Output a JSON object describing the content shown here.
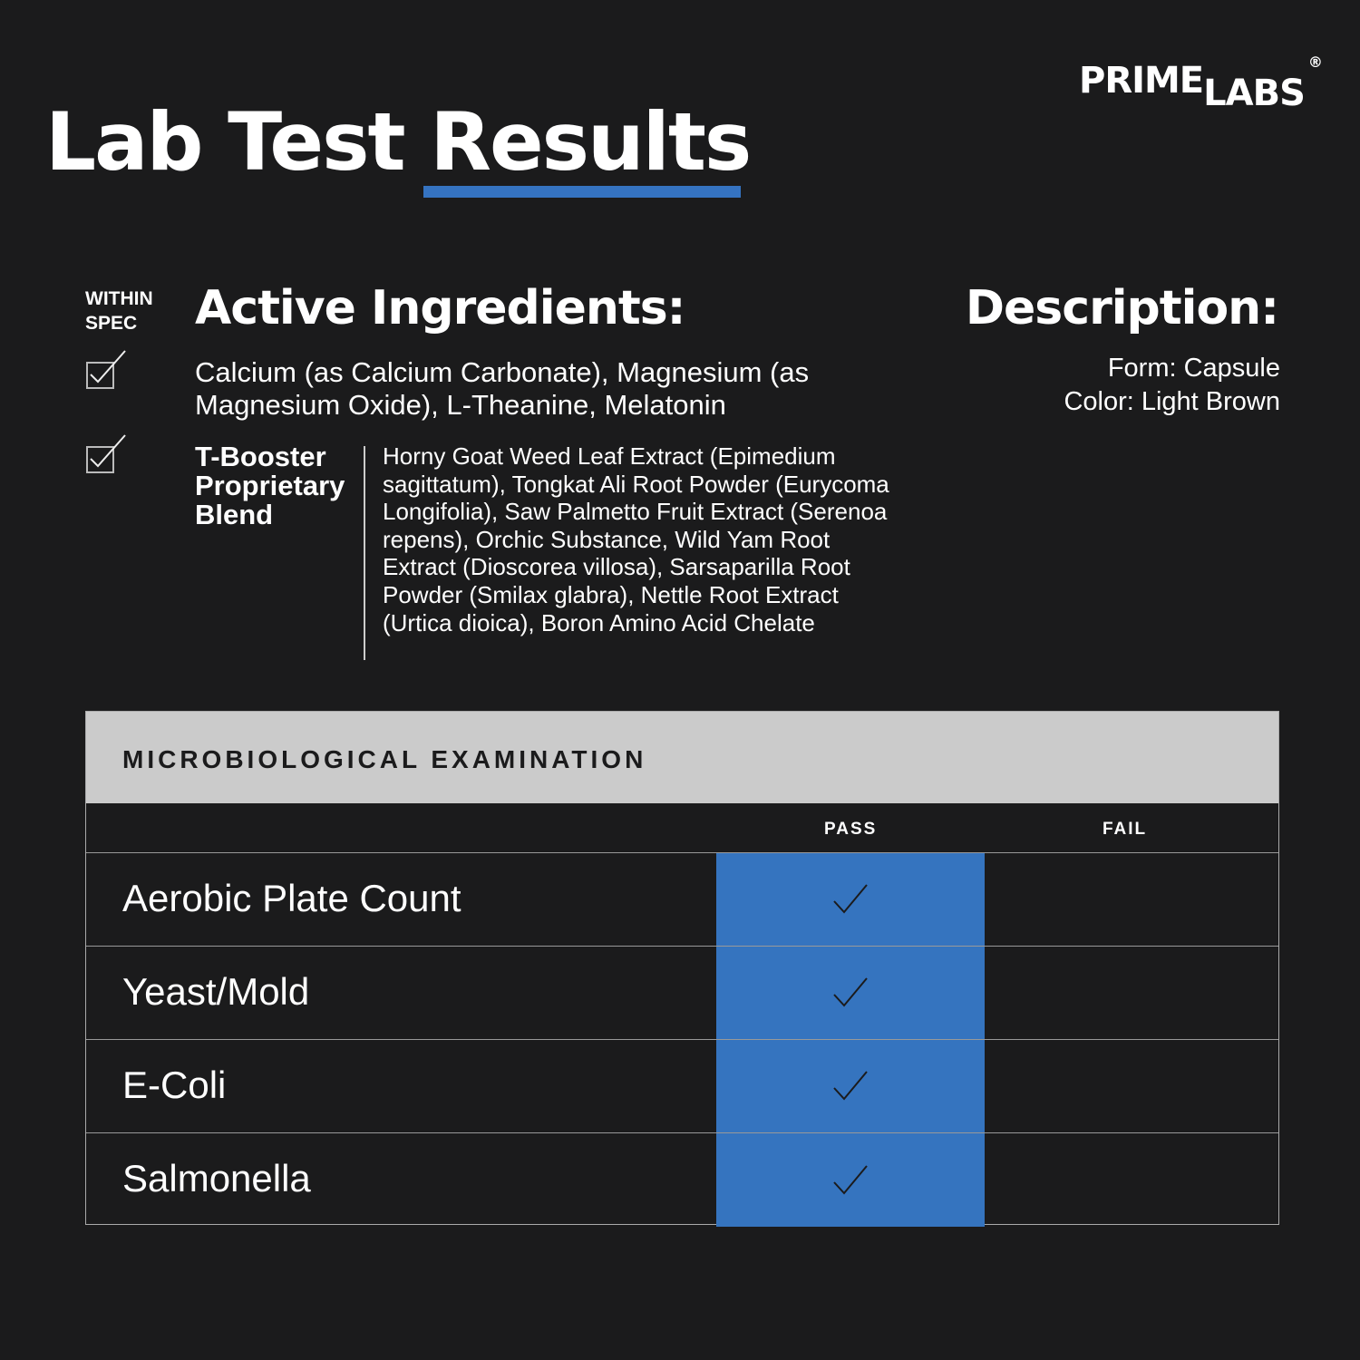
{
  "title": "Lab Test Results",
  "logo": {
    "text1": "PRIME",
    "text2": "LABS",
    "reg": "®"
  },
  "spec_label": {
    "line1": "WITHIN",
    "line2": "SPEC"
  },
  "active": {
    "heading": "Active Ingredients:",
    "text": "Calcium (as Calcium Carbonate), Magnesium (as Magnesium Oxide), L-Theanine, Melatonin"
  },
  "blend": {
    "heading_lines": [
      "T-Booster",
      "Proprietary",
      "Blend"
    ],
    "text": "Horny Goat Weed Leaf Extract (Epimedium sagittatum), Tongkat Ali Root Powder (Eurycoma Longifolia), Saw Palmetto Fruit Extract (Serenoa repens), Orchic Substance, Wild Yam Root Extract (Dioscorea villosa), Sarsaparilla Root Powder (Smilax glabra), Nettle Root Extract (Urtica dioica), Boron Amino Acid Chelate"
  },
  "description": {
    "heading": "Description:",
    "form": "Form: Capsule",
    "color": "Color: Light Brown"
  },
  "table": {
    "title": "MICROBIOLOGICAL EXAMINATION",
    "pass": "PASS",
    "fail": "FAIL",
    "rows": [
      {
        "name": "Aerobic Plate Count",
        "result": "pass"
      },
      {
        "name": "Yeast/Mold",
        "result": "pass"
      },
      {
        "name": "E-Coli",
        "result": "pass"
      },
      {
        "name": "Salmonella",
        "result": "pass"
      }
    ]
  },
  "colors": {
    "accent": "#3574bf",
    "background": "#1b1b1c",
    "header": "#cbcbcb"
  }
}
